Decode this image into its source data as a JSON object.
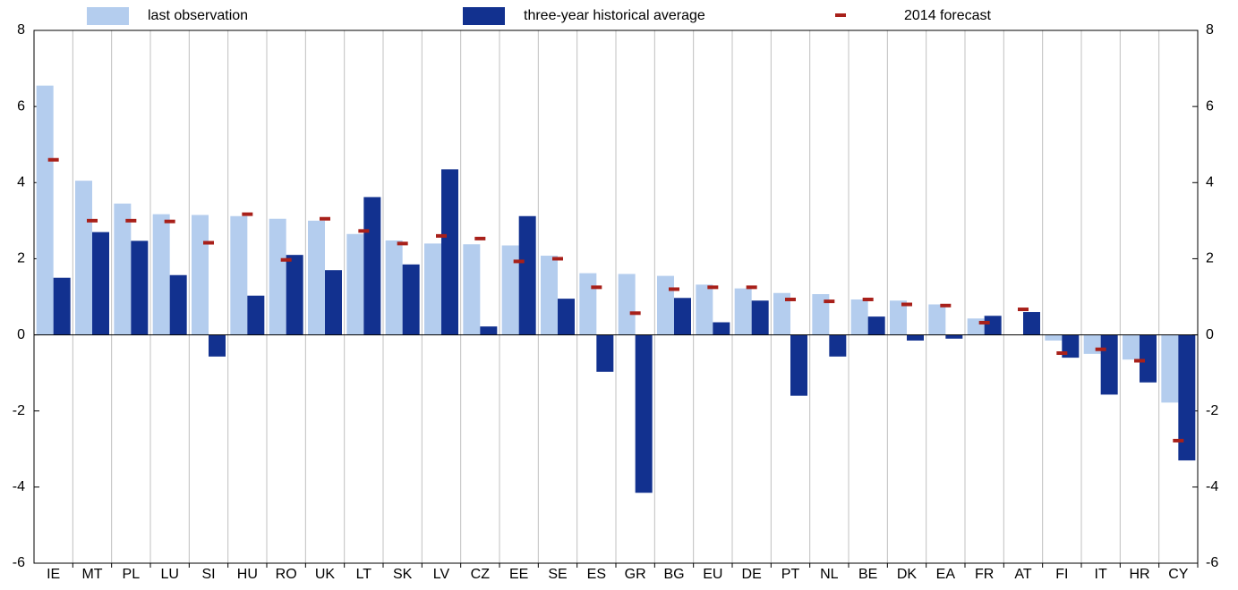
{
  "chart_data": {
    "type": "bar",
    "categories": [
      "IE",
      "MT",
      "PL",
      "LU",
      "SI",
      "HU",
      "RO",
      "UK",
      "LT",
      "SK",
      "LV",
      "CZ",
      "EE",
      "SE",
      "ES",
      "GR",
      "BG",
      "EU",
      "DE",
      "PT",
      "NL",
      "BE",
      "DK",
      "EA",
      "FR",
      "AT",
      "FI",
      "IT",
      "HR",
      "CY"
    ],
    "series": [
      {
        "name": "last observation",
        "color": "#b4cdee",
        "marker": "bar",
        "values": [
          6.55,
          4.05,
          3.45,
          3.17,
          3.15,
          3.12,
          3.05,
          3.0,
          2.65,
          2.48,
          2.4,
          2.38,
          2.35,
          2.08,
          1.62,
          1.6,
          1.55,
          1.32,
          1.22,
          1.1,
          1.07,
          0.93,
          0.9,
          0.8,
          0.43,
          null,
          -0.15,
          -0.5,
          -0.65,
          -1.78
        ]
      },
      {
        "name": "three-year historical average",
        "color": "#12318f",
        "marker": "bar",
        "values": [
          1.5,
          2.7,
          2.47,
          1.57,
          -0.57,
          1.03,
          2.1,
          1.7,
          3.62,
          1.85,
          4.35,
          0.22,
          3.12,
          0.95,
          -0.97,
          -4.15,
          0.97,
          0.33,
          0.9,
          -1.6,
          -0.57,
          0.48,
          -0.15,
          -0.1,
          0.5,
          0.6,
          -0.6,
          -1.57,
          -1.25,
          -3.3
        ]
      },
      {
        "name": "2014 forecast",
        "color": "#a8201a",
        "marker": "dash",
        "values": [
          4.6,
          3.0,
          3.0,
          2.98,
          2.42,
          3.17,
          1.97,
          3.05,
          2.73,
          2.4,
          2.6,
          2.53,
          1.93,
          2.0,
          1.25,
          0.57,
          1.2,
          1.25,
          1.25,
          0.93,
          0.88,
          0.93,
          0.8,
          0.77,
          0.32,
          0.67,
          -0.48,
          -0.38,
          -0.68,
          -2.78
        ]
      }
    ],
    "ylim": [
      -6,
      8
    ],
    "yticks": [
      -6,
      -4,
      -2,
      0,
      2,
      4,
      6,
      8
    ],
    "y2lim": [
      -6,
      8
    ],
    "y2ticks": [
      -6,
      -4,
      -2,
      0,
      2,
      4,
      6,
      8
    ]
  }
}
